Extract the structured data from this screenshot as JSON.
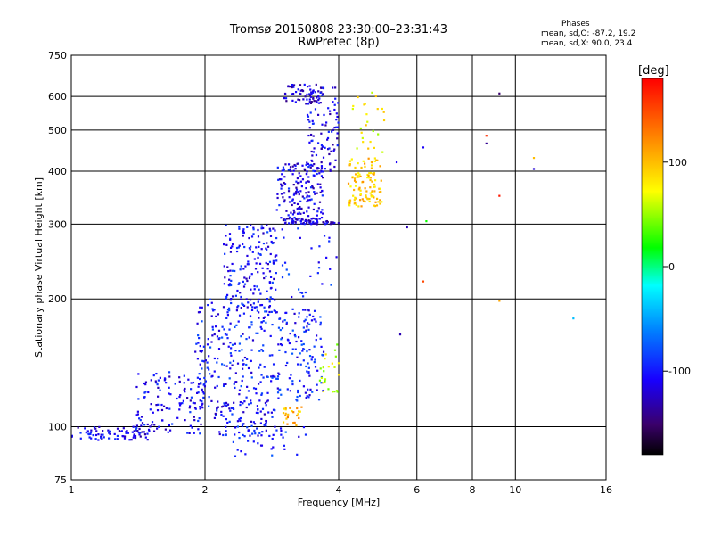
{
  "header": {
    "title_line1": "Tromsø 20150808 23:30:00–23:31:43",
    "title_line2": "RwPretec (8p)"
  },
  "phases": {
    "heading": "Phases",
    "line_o": "mean, sd,O: -87.2, 19.2",
    "line_x": "mean, sd,X:  90.0, 23.4"
  },
  "chart_data": {
    "type": "scatter",
    "xlabel": "Frequency [MHz]",
    "ylabel": "Stationary phase Virtual Height [km]",
    "x_scale": "log",
    "y_scale": "log",
    "xlim": [
      1,
      16
    ],
    "ylim": [
      75,
      750
    ],
    "x_ticks": [
      1,
      2,
      4,
      6,
      8,
      10,
      16
    ],
    "y_ticks": [
      75,
      100,
      200,
      300,
      400,
      500,
      600,
      750
    ],
    "grid": true,
    "colorbar": {
      "label": "[deg]",
      "range": [
        -180,
        180
      ],
      "ticks": [
        100,
        0,
        -100
      ],
      "colors": [
        "#000000",
        "#3a006a",
        "#1800ff",
        "#0080ff",
        "#00ffff",
        "#00ff00",
        "#ffff00",
        "#ff8000",
        "#ff0000"
      ]
    },
    "point_groups": [
      {
        "x": [
          1.0,
          1.5
        ],
        "y": [
          93,
          100
        ],
        "phase": -112,
        "count": 80
      },
      {
        "x": [
          1.4,
          2.0
        ],
        "y": [
          96,
          135
        ],
        "phase": -108,
        "count": 130
      },
      {
        "x": [
          1.9,
          2.6
        ],
        "y": [
          110,
          200
        ],
        "phase": -100,
        "count": 170
      },
      {
        "x": [
          2.1,
          2.9
        ],
        "y": [
          95,
          115
        ],
        "phase": -105,
        "count": 90
      },
      {
        "x": [
          2.2,
          2.9
        ],
        "y": [
          190,
          300
        ],
        "phase": -105,
        "count": 170
      },
      {
        "x": [
          2.6,
          3.7
        ],
        "y": [
          115,
          190
        ],
        "phase": -98,
        "count": 190
      },
      {
        "x": [
          2.9,
          3.7
        ],
        "y": [
          300,
          420
        ],
        "phase": -112,
        "count": 180
      },
      {
        "x": [
          3.0,
          4.0
        ],
        "y": [
          300,
          310
        ],
        "phase": -118,
        "count": 60
      },
      {
        "x": [
          3.4,
          4.0
        ],
        "y": [
          400,
          630
        ],
        "phase": -115,
        "count": 90
      },
      {
        "x": [
          3.0,
          3.7
        ],
        "y": [
          575,
          640
        ],
        "phase": -120,
        "count": 60
      },
      {
        "x": [
          4.2,
          5.0
        ],
        "y": [
          330,
          430
        ],
        "phase": 95,
        "count": 110
      },
      {
        "x": [
          4.3,
          5.1
        ],
        "y": [
          440,
          640
        ],
        "phase": 75,
        "count": 25
      },
      {
        "x": [
          3.6,
          4.0
        ],
        "y": [
          120,
          160
        ],
        "phase": 60,
        "count": 25
      },
      {
        "x": [
          3.0,
          3.3
        ],
        "y": [
          100,
          112
        ],
        "phase": 105,
        "count": 25
      },
      {
        "x": [
          2.3,
          3.4
        ],
        "y": [
          85,
          100
        ],
        "phase": -95,
        "count": 30
      },
      {
        "x": [
          2.8,
          4.0
        ],
        "y": [
          200,
          300
        ],
        "phase": -95,
        "count": 35
      }
    ],
    "outliers": [
      {
        "x": 8.6,
        "y": 485,
        "phase": 160
      },
      {
        "x": 8.6,
        "y": 465,
        "phase": -140
      },
      {
        "x": 9.2,
        "y": 610,
        "phase": -150
      },
      {
        "x": 9.2,
        "y": 350,
        "phase": 170
      },
      {
        "x": 11.0,
        "y": 430,
        "phase": 100
      },
      {
        "x": 11.0,
        "y": 405,
        "phase": -120
      },
      {
        "x": 13.5,
        "y": 180,
        "phase": -40
      },
      {
        "x": 6.2,
        "y": 455,
        "phase": -110
      },
      {
        "x": 6.3,
        "y": 305,
        "phase": 20
      },
      {
        "x": 5.7,
        "y": 295,
        "phase": -130
      },
      {
        "x": 6.2,
        "y": 220,
        "phase": 150
      },
      {
        "x": 5.5,
        "y": 165,
        "phase": -130
      },
      {
        "x": 9.2,
        "y": 198,
        "phase": 110
      },
      {
        "x": 5.4,
        "y": 420,
        "phase": -110
      }
    ]
  }
}
